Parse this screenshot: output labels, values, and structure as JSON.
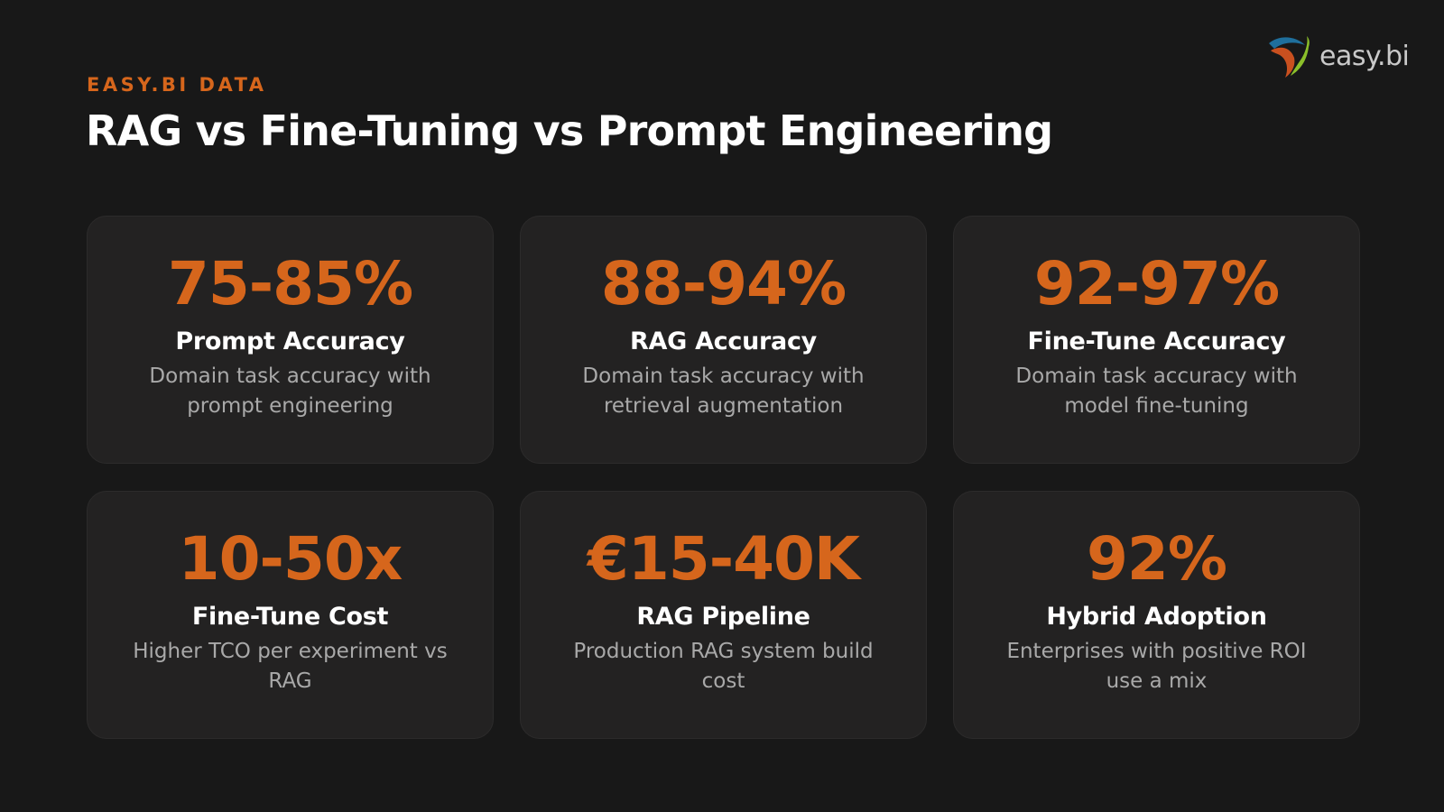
{
  "brand": {
    "logo_text": "easy.bi",
    "logo_icon": "easybi-swoosh-icon",
    "accent_color": "#d6661c"
  },
  "header": {
    "eyebrow": "EASY.BI DATA",
    "title": "RAG vs Fine-Tuning vs Prompt Engineering"
  },
  "cards": [
    {
      "stat": "75-85%",
      "label": "Prompt Accuracy",
      "desc": "Domain task accuracy with prompt engineering"
    },
    {
      "stat": "88-94%",
      "label": "RAG Accuracy",
      "desc": "Domain task accuracy with retrieval augmentation"
    },
    {
      "stat": "92-97%",
      "label": "Fine-Tune Accuracy",
      "desc": "Domain task accuracy with model fine-tuning"
    },
    {
      "stat": "10-50x",
      "label": "Fine-Tune Cost",
      "desc": "Higher TCO per experiment vs RAG"
    },
    {
      "stat": "€15-40K",
      "label": "RAG Pipeline",
      "desc": "Production RAG system build cost"
    },
    {
      "stat": "92%",
      "label": "Hybrid Adoption",
      "desc": "Enterprises with positive ROI use a mix"
    }
  ]
}
